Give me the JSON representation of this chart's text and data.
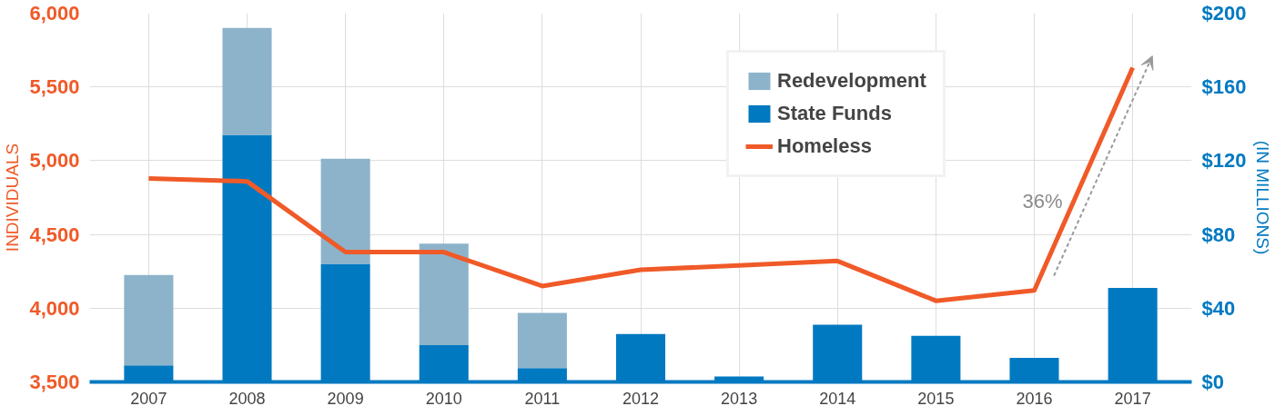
{
  "chart_data": {
    "type": "bar",
    "stacked": true,
    "categories": [
      "2007",
      "2008",
      "2009",
      "2010",
      "2011",
      "2012",
      "2013",
      "2014",
      "2015",
      "2016",
      "2017"
    ],
    "series": [
      {
        "name": "State Funds",
        "color": "#0079c1",
        "axis": "y2",
        "values": [
          9,
          134,
          64,
          20,
          7.5,
          26,
          3,
          31,
          25,
          13,
          51
        ]
      },
      {
        "name": "Redevelopment",
        "color": "#8db3ca",
        "axis": "y2",
        "values": [
          49,
          58,
          57,
          55,
          30,
          null,
          null,
          null,
          null,
          null,
          null
        ]
      },
      {
        "name": "Homeless",
        "type": "line",
        "color": "#f05a28",
        "values": [
          4880,
          4860,
          4380,
          4380,
          4150,
          4260,
          4290,
          4320,
          4050,
          4120,
          5630
        ]
      }
    ],
    "ylabel": "INDIVIDUALS",
    "y2label": "(IN MILLIONS)",
    "ylim": [
      3500,
      6000
    ],
    "yticks": [
      {
        "value": 3500,
        "label": "3,500"
      },
      {
        "value": 4000,
        "label": "4,000"
      },
      {
        "value": 4500,
        "label": "4,500"
      },
      {
        "value": 5000,
        "label": "5,000"
      },
      {
        "value": 5500,
        "label": "5,500"
      },
      {
        "value": 6000,
        "label": "6,000"
      }
    ],
    "y2lim": [
      0,
      200
    ],
    "y2ticks": [
      {
        "value": 0,
        "label": "$0"
      },
      {
        "value": 40,
        "label": "$40"
      },
      {
        "value": 80,
        "label": "$80"
      },
      {
        "value": 120,
        "label": "$120"
      },
      {
        "value": 160,
        "label": "$160"
      },
      {
        "value": 200,
        "label": "$200"
      }
    ],
    "annotations": [
      "36%"
    ],
    "grid": true,
    "legend": "top",
    "line_style": "solid",
    "marker": "none"
  }
}
